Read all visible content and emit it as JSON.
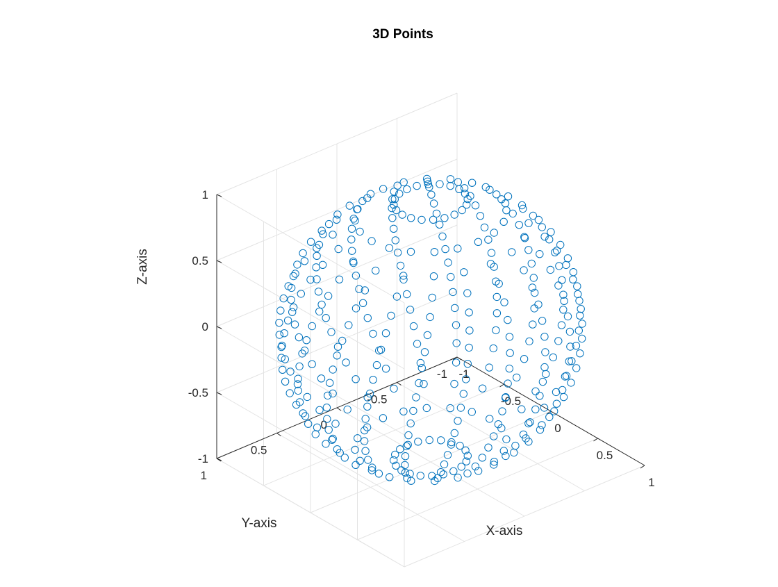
{
  "chart_data": {
    "type": "scatter",
    "title": "3D Points",
    "xlabel": "X-axis",
    "ylabel": "Y-axis",
    "zlabel": "Z-axis",
    "xlim": [
      -1,
      1
    ],
    "ylim": [
      -1,
      1
    ],
    "zlim": [
      -1,
      1
    ],
    "xticks": [
      -1,
      -0.5,
      0,
      0.5,
      1
    ],
    "yticks": [
      -1,
      -0.5,
      0,
      0.5,
      1
    ],
    "zticks": [
      -1,
      -0.5,
      0,
      0.5,
      1
    ],
    "xtick_labels": [
      "-1",
      "-0.5",
      "0",
      "0.5",
      "1"
    ],
    "ytick_labels": [
      "-1",
      "-0.5",
      "0",
      "0.5",
      "1"
    ],
    "ztick_labels": [
      "-1",
      "-0.5",
      "0",
      "0.5",
      "1"
    ],
    "grid": true,
    "box": "open",
    "view": {
      "azimuth": -37.5,
      "elevation": 30
    },
    "marker": "circle-open",
    "marker_color": "#0072BD",
    "shape": "unit sphere",
    "point_count": 400,
    "sampling": "points on unit sphere, z in [-1, 1], arranged in latitude rings with clustering near poles"
  }
}
